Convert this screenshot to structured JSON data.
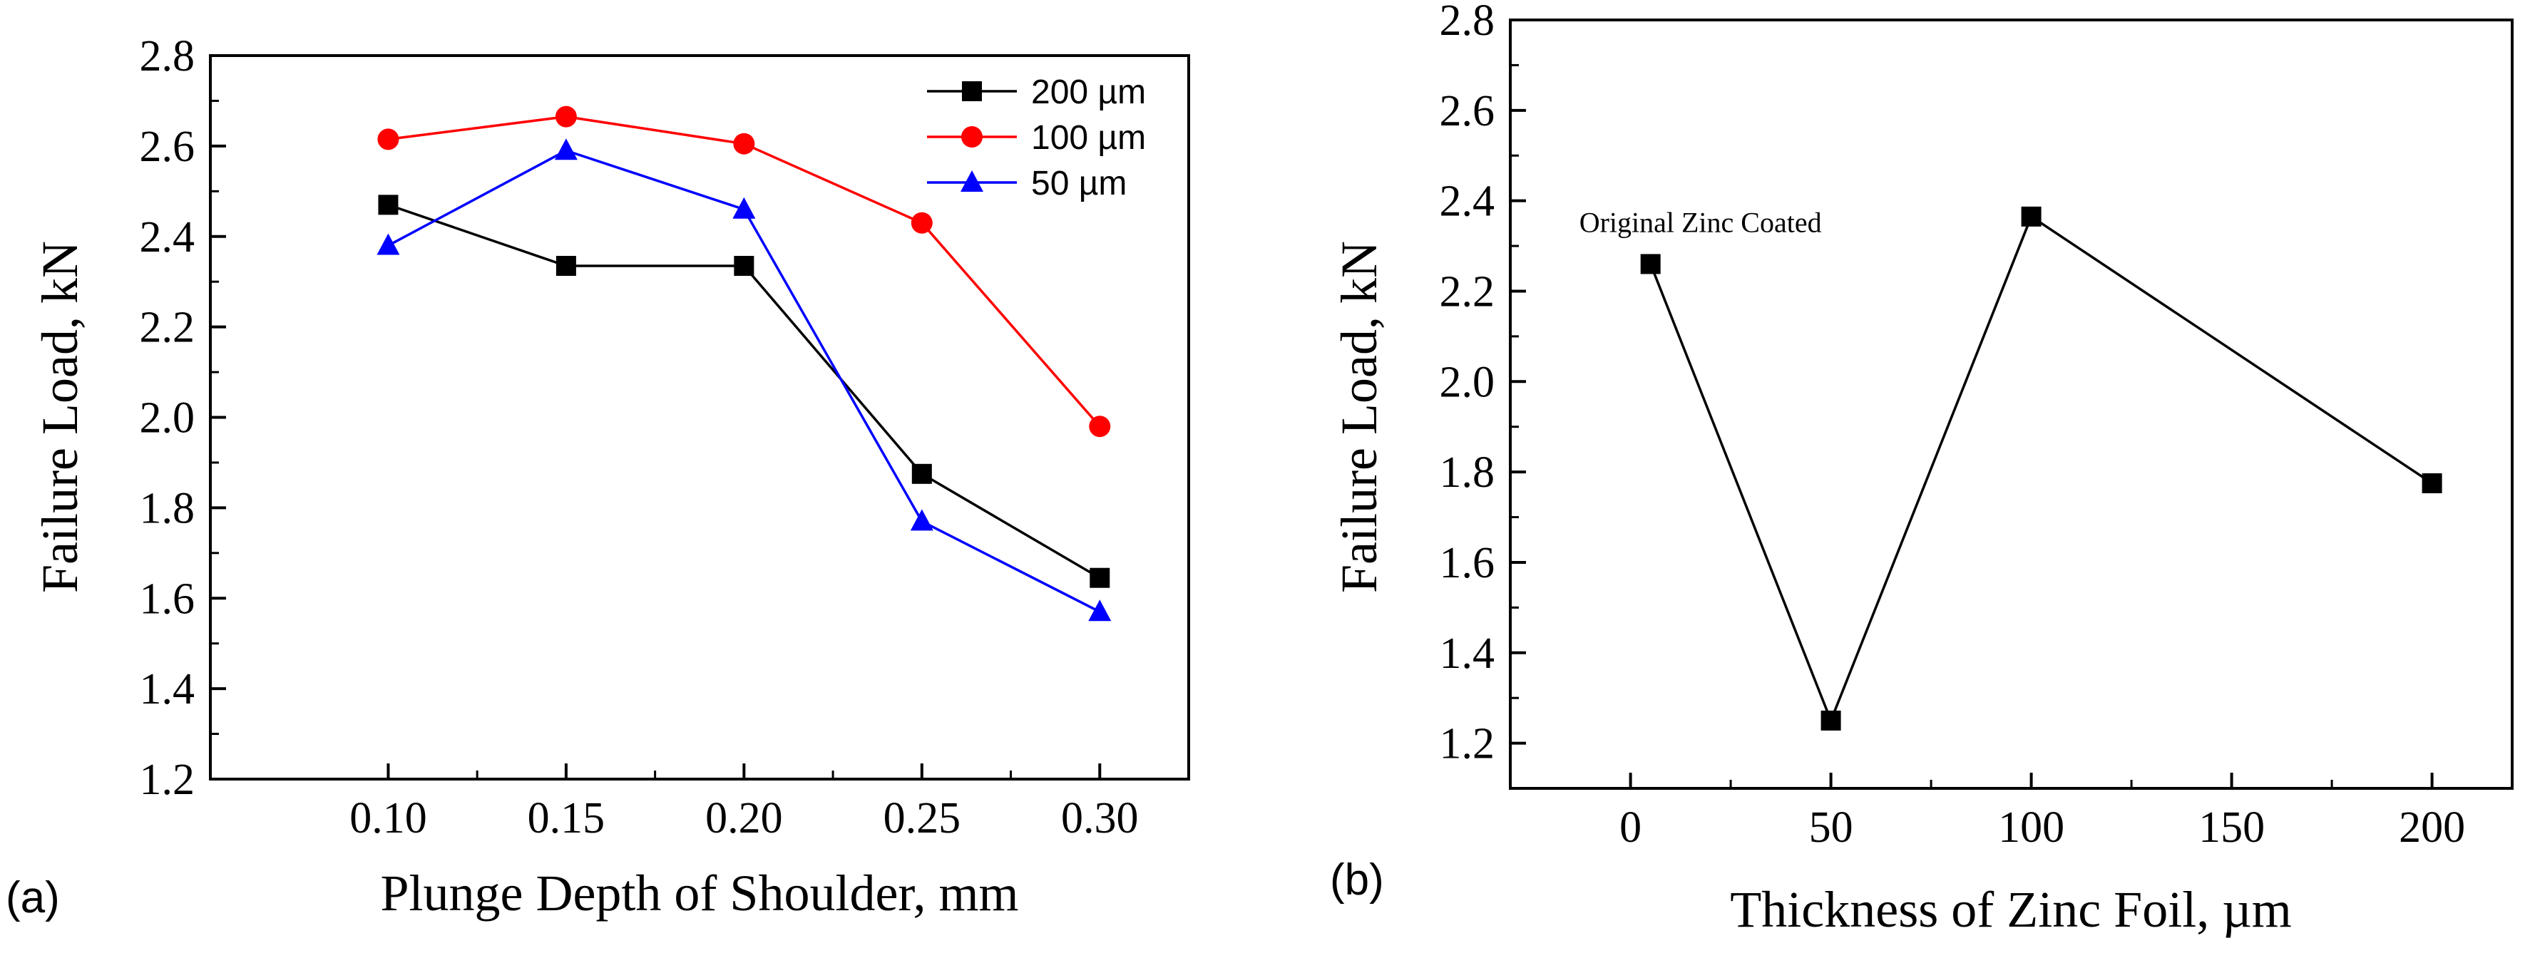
{
  "chart_data": [
    {
      "type": "line",
      "panel_label": "(a)",
      "xlabel": "Plunge Depth of Shoulder, mm",
      "ylabel": "Failure Load,  kN",
      "xlim": [
        0.05,
        0.325
      ],
      "ylim": [
        1.2,
        2.8
      ],
      "x_ticks": [
        "0.10",
        "0.15",
        "0.20",
        "0.25",
        "0.30"
      ],
      "y_ticks": [
        "1.2",
        "1.4",
        "1.6",
        "1.8",
        "2.0",
        "2.2",
        "2.4",
        "2.6",
        "2.8"
      ],
      "grid": false,
      "legend_position": "top-right",
      "x": [
        0.1,
        0.15,
        0.2,
        0.25,
        0.3
      ],
      "series": [
        {
          "name": "200 µm",
          "color": "#000000",
          "marker": "square",
          "values": [
            2.47,
            2.335,
            2.335,
            1.875,
            1.645
          ]
        },
        {
          "name": "100 µm",
          "color": "#ff0000",
          "marker": "circle",
          "values": [
            2.615,
            2.665,
            2.605,
            2.43,
            1.98
          ]
        },
        {
          "name": "50 µm",
          "color": "#0000ff",
          "marker": "triangle",
          "values": [
            2.38,
            2.59,
            2.46,
            1.77,
            1.57
          ]
        }
      ]
    },
    {
      "type": "line",
      "panel_label": "(b)",
      "xlabel": "Thickness of Zinc Foil, µm",
      "ylabel": "Failure Load,  kN",
      "xlim": [
        -30,
        220
      ],
      "ylim": [
        1.1,
        2.8
      ],
      "x_ticks": [
        "0",
        "50",
        "100",
        "150",
        "200"
      ],
      "y_ticks": [
        "1.2",
        "1.4",
        "1.6",
        "1.8",
        "2.0",
        "2.2",
        "2.4",
        "2.6",
        "2.8"
      ],
      "grid": false,
      "x": [
        5,
        50,
        100,
        200
      ],
      "series": [
        {
          "color": "#000000",
          "marker": "square",
          "values": [
            2.26,
            1.25,
            2.365,
            1.775
          ]
        }
      ],
      "annotations": [
        {
          "text": "Original Zinc Coated",
          "x": 5,
          "y": 2.35
        }
      ]
    }
  ]
}
